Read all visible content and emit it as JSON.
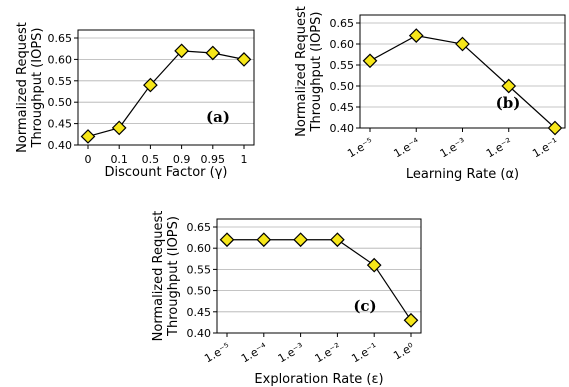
{
  "chart_data": [
    {
      "type": "line",
      "panel_label": "(a)",
      "ylabel_line1": "Normalized Request",
      "ylabel_line2": "Throughput (IOPS)",
      "xlabel": "Discount Factor (γ)",
      "categories": [
        "0",
        "0.1",
        "0.5",
        "0.9",
        "0.95",
        "1"
      ],
      "values": [
        0.42,
        0.44,
        0.54,
        0.62,
        0.615,
        0.6
      ],
      "ylim": [
        0.4,
        0.65
      ],
      "yticks": [
        "0.40",
        "0.45",
        "0.50",
        "0.55",
        "0.60",
        "0.65"
      ],
      "grid": "horizontal",
      "rotated_xticks": false,
      "marker": "diamond",
      "marker_color": "#f6e619"
    },
    {
      "type": "line",
      "panel_label": "(b)",
      "ylabel_line1": "Normalized Request",
      "ylabel_line2": "Throughput (IOPS)",
      "xlabel": "Learning Rate (α)",
      "categories": [
        "1.e⁻⁵",
        "1.e⁻⁴",
        "1.e⁻³",
        "1.e⁻²",
        "1.e⁻¹"
      ],
      "values": [
        0.56,
        0.62,
        0.6,
        0.5,
        0.4
      ],
      "ylim": [
        0.4,
        0.65
      ],
      "yticks": [
        "0.40",
        "0.45",
        "0.50",
        "0.55",
        "0.60",
        "0.65"
      ],
      "grid": "horizontal",
      "rotated_xticks": true,
      "marker": "diamond",
      "marker_color": "#f6e619"
    },
    {
      "type": "line",
      "panel_label": "(c)",
      "ylabel_line1": "Normalized Request",
      "ylabel_line2": "Throughput (IOPS)",
      "xlabel": "Exploration Rate (ε)",
      "categories": [
        "1.e⁻⁵",
        "1.e⁻⁴",
        "1.e⁻³",
        "1.e⁻²",
        "1.e⁻¹",
        "1.e⁰"
      ],
      "values": [
        0.62,
        0.62,
        0.62,
        0.62,
        0.56,
        0.43
      ],
      "ylim": [
        0.4,
        0.65
      ],
      "yticks": [
        "0.40",
        "0.45",
        "0.50",
        "0.55",
        "0.60",
        "0.65"
      ],
      "grid": "horizontal",
      "rotated_xticks": true,
      "marker": "diamond",
      "marker_color": "#f6e619"
    }
  ]
}
